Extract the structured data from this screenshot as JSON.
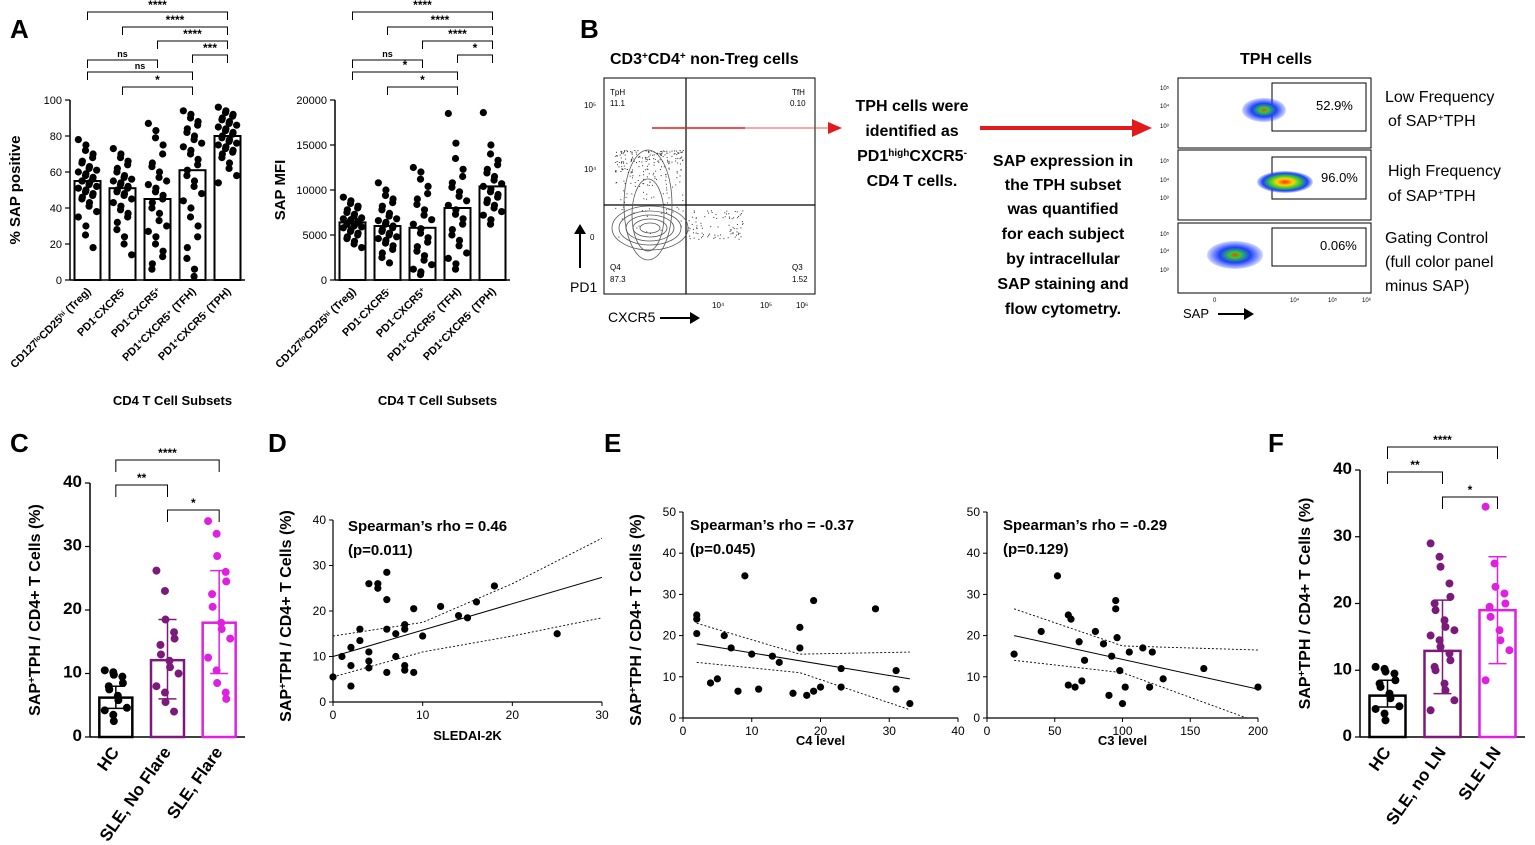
{
  "colors": {
    "black": "#000000",
    "purple": "#7b1a7b",
    "magenta": "#e020e0",
    "red": "#e31a1c"
  },
  "panel_letters": [
    "A",
    "B",
    "C",
    "D",
    "E",
    "F"
  ],
  "panelB": {
    "left_title_main": "CD3",
    "left_title_sup1": "+",
    "left_title_mid": "CD4",
    "left_title_sup2": "+",
    "left_title_tail": " non-Treg cells",
    "right_title": "TPH cells",
    "q_tph_label": "TpH",
    "q_tph_value": "11.1",
    "q_tfh_label": "TfH",
    "q_tfh_value": "0.10",
    "q_q4_label": "Q4",
    "q_q4_value": "87.3",
    "q_q3_label": "Q3",
    "q_q3_value": "1.52",
    "x_axis_label": "CXCR5",
    "y_axis_label": "PD1",
    "sap_axis_label": "SAP",
    "ticks_y_left": [
      "10⁵",
      "10⁴",
      "0"
    ],
    "ticks_x_left": [
      "10⁴",
      "10⁵",
      "10⁶"
    ],
    "ticks_y_small": [
      "10⁵",
      "10⁴",
      "10³"
    ],
    "ticks_x_small": [
      "0",
      "10⁴",
      "10⁵",
      "10⁶"
    ],
    "desc1_l1": "TPH cells were",
    "desc1_l2": "identified as",
    "desc1_l3_a": "PD1",
    "desc1_l3_sup": "high",
    "desc1_l3_b": "CXCR5",
    "desc1_l3_sup2": "-",
    "desc1_l4": "CD4 T cells.",
    "desc2": [
      "SAP expression in",
      "the TPH subset",
      "was quantified",
      "for each subject",
      "by intracellular",
      "SAP staining and",
      "flow cytometry."
    ],
    "gate_pct": [
      "52.9%",
      "96.0%",
      "0.06%"
    ],
    "lbl_low_1": "Low Frequency",
    "lbl_low_2a": "of SAP",
    "lbl_low_sup": "+",
    "lbl_low_2b": "TPH",
    "lbl_high_1": "High Frequency",
    "lbl_high_2a": "of SAP",
    "lbl_high_sup": "+",
    "lbl_high_2b": "TPH",
    "lbl_ctrl": [
      "Gating Control",
      "(full color panel",
      "minus SAP)"
    ]
  },
  "chart_data": [
    {
      "id": "A1",
      "type": "bar",
      "categories": [
        "CD127loCD25hi (Treg)",
        "PD1-CXCR5-",
        "PD1-CXCR5+",
        "PD1+CXCR5+ (TFH)",
        "PD1+CXCR5- (TPH)"
      ],
      "values": [
        55,
        51,
        45,
        61,
        80
      ],
      "ylabel": "% SAP positive",
      "xlabel": "CD4 T Cell Subsets",
      "ylim": [
        0,
        100
      ],
      "yticks": [
        0,
        20,
        40,
        60,
        80,
        100
      ],
      "points": [
        [
          78,
          75,
          72,
          70,
          68,
          66,
          65,
          63,
          62,
          61,
          60,
          59,
          58,
          57,
          56,
          55,
          55,
          54,
          53,
          52,
          51,
          50,
          49,
          48,
          47,
          46,
          45,
          43,
          41,
          38,
          35,
          30,
          25,
          18
        ],
        [
          73,
          70,
          68,
          66,
          64,
          62,
          60,
          58,
          57,
          56,
          55,
          54,
          53,
          52,
          51,
          50,
          49,
          48,
          47,
          45,
          43,
          41,
          39,
          37,
          35,
          32,
          28,
          24,
          20,
          14
        ],
        [
          87,
          83,
          79,
          75,
          70,
          65,
          63,
          60,
          57,
          55,
          53,
          51,
          49,
          47,
          45,
          43,
          40,
          37,
          33,
          30,
          27,
          24,
          20,
          16,
          13,
          9,
          6
        ],
        [
          94,
          92,
          90,
          88,
          86,
          84,
          82,
          80,
          78,
          76,
          74,
          72,
          70,
          67,
          64,
          61,
          58,
          55,
          52,
          48,
          44,
          40,
          35,
          30,
          24,
          18,
          12,
          6,
          2
        ],
        [
          96,
          94,
          93,
          92,
          91,
          90,
          89,
          88,
          87,
          86,
          85,
          84,
          83,
          82,
          81,
          80,
          79,
          78,
          77,
          76,
          75,
          74,
          73,
          72,
          71,
          70,
          68,
          65,
          62,
          58,
          54
        ]
      ],
      "sig": [
        {
          "from": 0,
          "to": 4,
          "label": "****"
        },
        {
          "from": 1,
          "to": 4,
          "label": "****"
        },
        {
          "from": 2,
          "to": 4,
          "label": "****"
        },
        {
          "from": 3,
          "to": 4,
          "label": "***"
        },
        {
          "from": 0,
          "to": 2,
          "label": "ns"
        },
        {
          "from": 0,
          "to": 3,
          "label": "ns"
        },
        {
          "from": 1,
          "to": 3,
          "label": "*"
        }
      ]
    },
    {
      "id": "A2",
      "type": "bar",
      "categories": [
        "CD127loCD25hi (Treg)",
        "PD1-CXCR5-",
        "PD1-CXCR5+",
        "PD1+CXCR5+ (TFH)",
        "PD1+CXCR5- (TPH)"
      ],
      "values": [
        6400,
        6000,
        5800,
        8000,
        10400
      ],
      "ylabel": "SAP MFI",
      "xlabel": "CD4 T Cell Subsets",
      "ylim": [
        0,
        20000
      ],
      "yticks": [
        0,
        5000,
        10000,
        15000,
        20000
      ],
      "points": [
        [
          9200,
          8800,
          8500,
          8200,
          8000,
          7800,
          7500,
          7300,
          7100,
          6900,
          6800,
          6700,
          6600,
          6500,
          6400,
          6300,
          6200,
          6100,
          6000,
          5900,
          5800,
          5600,
          5400,
          5200,
          5000,
          4800,
          4600,
          4300,
          4000,
          3600
        ],
        [
          10800,
          10000,
          9400,
          9000,
          8600,
          8200,
          7800,
          7400,
          7100,
          6800,
          6600,
          6400,
          6200,
          6000,
          5800,
          5600,
          5400,
          5200,
          5000,
          4800,
          4600,
          4400,
          4100,
          3800,
          3400,
          3000,
          2500,
          1900
        ],
        [
          12500,
          12000,
          11200,
          10400,
          9600,
          9000,
          8400,
          7800,
          7200,
          6700,
          6200,
          5700,
          5200,
          4700,
          4200,
          3700,
          3200,
          2700,
          2200,
          1700,
          1200,
          900,
          600
        ],
        [
          18500,
          15200,
          13500,
          12300,
          11500,
          10800,
          10300,
          9800,
          9300,
          8800,
          8300,
          7800,
          7300,
          6800,
          6200,
          5600,
          5000,
          4400,
          3800,
          3000,
          2400,
          1800,
          1200
        ],
        [
          18600,
          15000,
          14000,
          13300,
          12800,
          12300,
          11900,
          11500,
          11100,
          10700,
          10400,
          10100,
          9800,
          9500,
          9200,
          8900,
          8600,
          8300,
          8000,
          7600,
          7200,
          6700,
          6200
        ]
      ],
      "sig": [
        {
          "from": 0,
          "to": 4,
          "label": "****"
        },
        {
          "from": 1,
          "to": 4,
          "label": "****"
        },
        {
          "from": 2,
          "to": 4,
          "label": "****"
        },
        {
          "from": 3,
          "to": 4,
          "label": "*"
        },
        {
          "from": 0,
          "to": 2,
          "label": "ns"
        },
        {
          "from": 0,
          "to": 3,
          "label": "*"
        },
        {
          "from": 1,
          "to": 3,
          "label": "*"
        }
      ]
    },
    {
      "id": "C",
      "type": "bar",
      "categories": [
        "HC",
        "SLE, No Flare",
        "SLE, Flare"
      ],
      "values": [
        6.2,
        12.1,
        18.0
      ],
      "errors": [
        [
          4.5,
          8.0
        ],
        [
          6.0,
          18.5
        ],
        [
          10.0,
          26.2
        ]
      ],
      "colors": [
        "#000000",
        "#7b1a7b",
        "#e020e0"
      ],
      "ylabel": "SAP+TPH / CD4+ T Cells (%)",
      "ylim": [
        0,
        40
      ],
      "yticks": [
        0,
        10,
        20,
        30,
        40
      ],
      "points": [
        [
          10.5,
          10.2,
          9.8,
          9.5,
          8.5,
          8,
          7.5,
          6.5,
          5.8,
          4.6,
          4.2,
          3.5,
          2.5
        ],
        [
          26.2,
          23,
          18.5,
          16.5,
          15.5,
          14.5,
          13,
          12,
          11,
          10,
          8,
          7,
          5.5,
          4
        ],
        [
          34,
          32,
          28.5,
          26,
          24.5,
          22.5,
          20.5,
          18,
          17,
          15.5,
          12.5,
          10.5,
          8.5,
          7,
          6
        ]
      ],
      "sig": [
        {
          "from": 0,
          "to": 2,
          "label": "****"
        },
        {
          "from": 0,
          "to": 1,
          "label": "**"
        },
        {
          "from": 1,
          "to": 2,
          "label": "*"
        }
      ]
    },
    {
      "id": "D",
      "type": "scatter",
      "x": [
        0,
        1,
        2,
        2,
        2,
        3,
        3,
        4,
        4,
        4,
        4,
        5,
        5,
        6,
        6,
        6,
        6,
        7,
        7,
        8,
        8,
        8,
        8,
        9,
        9,
        10,
        12,
        14,
        15,
        16,
        18,
        25
      ],
      "y": [
        5.5,
        10,
        3.5,
        8,
        12,
        13.5,
        16,
        7.5,
        9,
        11,
        26,
        26,
        25,
        28.5,
        22.5,
        16,
        6.5,
        10,
        15,
        17,
        16,
        8,
        7,
        20.5,
        6.5,
        14.5,
        21,
        19,
        18.5,
        22,
        25.5,
        15
      ],
      "xlabel": "SLEDAI-2K",
      "ylabel": "SAP+TPH / CD4+ T Cells (%)",
      "xlim": [
        0,
        30
      ],
      "ylim": [
        0,
        40
      ],
      "xticks": [
        0,
        10,
        20,
        30
      ],
      "yticks": [
        0,
        10,
        20,
        30,
        40
      ],
      "fit": [
        [
          0,
          10
        ],
        [
          30,
          27.4
        ]
      ],
      "ci_upper": [
        [
          0,
          14.5
        ],
        [
          10,
          17.5
        ],
        [
          20,
          26
        ],
        [
          30,
          36
        ]
      ],
      "ci_lower": [
        [
          0,
          5.5
        ],
        [
          10,
          11
        ],
        [
          20,
          14.5
        ],
        [
          30,
          18.5
        ]
      ],
      "annotation_line1": "Spearman’s rho = 0.46",
      "annotation_line2": "(p=0.011)"
    },
    {
      "id": "E1",
      "type": "scatter",
      "x": [
        2,
        2,
        2,
        4,
        5,
        6,
        7,
        8,
        9,
        10,
        11,
        13,
        14,
        16,
        17,
        17,
        18,
        19,
        19,
        20,
        23,
        23,
        28,
        31,
        31,
        33
      ],
      "y": [
        25,
        24,
        20.5,
        8.5,
        9.5,
        20,
        17,
        6.5,
        34.5,
        15.5,
        7,
        15,
        13.5,
        6,
        17,
        22,
        5.5,
        28.5,
        6.5,
        7.5,
        12,
        7.5,
        26.5,
        11.5,
        7,
        3.5
      ],
      "xlabel": "C4 level",
      "ylabel": "SAP+TPH / CD4+ T Cells (%)",
      "xlim": [
        0,
        40
      ],
      "ylim": [
        0,
        50
      ],
      "xticks": [
        0,
        10,
        20,
        30,
        40
      ],
      "yticks": [
        0,
        10,
        20,
        30,
        40,
        50
      ],
      "fit": [
        [
          2,
          18
        ],
        [
          33,
          9.5
        ]
      ],
      "ci_upper": [
        [
          2,
          23
        ],
        [
          17,
          15.5
        ],
        [
          33,
          16
        ]
      ],
      "ci_lower": [
        [
          2,
          13.5
        ],
        [
          17,
          11
        ],
        [
          33,
          2
        ]
      ],
      "annotation_line1": "Spearman’s rho = -0.37",
      "annotation_line2": "(p=0.045)"
    },
    {
      "id": "E2",
      "type": "scatter",
      "x": [
        20,
        40,
        52,
        60,
        60,
        62,
        65,
        68,
        70,
        72,
        80,
        86,
        90,
        92,
        95,
        95,
        96,
        98,
        100,
        102,
        105,
        115,
        120,
        122,
        130,
        160,
        200
      ],
      "y": [
        15.5,
        21,
        34.5,
        25,
        8,
        24,
        7.5,
        18.5,
        9,
        14,
        21,
        18,
        5.5,
        15,
        26.5,
        28.5,
        19.5,
        11.5,
        3.5,
        7.5,
        16,
        17,
        7.5,
        16,
        9.5,
        12,
        7.5
      ],
      "xlabel": "C3 level",
      "ylabel": "SAP+TPH / CD4+ T Cells (%)",
      "xlim": [
        0,
        200
      ],
      "ylim": [
        0,
        50
      ],
      "xticks": [
        0,
        50,
        100,
        150,
        200
      ],
      "yticks": [
        0,
        10,
        20,
        30,
        40,
        50
      ],
      "fit": [
        [
          20,
          20
        ],
        [
          200,
          7
        ]
      ],
      "ci_upper": [
        [
          20,
          26.5
        ],
        [
          100,
          17.5
        ],
        [
          200,
          16.5
        ]
      ],
      "ci_lower": [
        [
          20,
          14
        ],
        [
          100,
          11
        ],
        [
          200,
          -1
        ]
      ],
      "annotation_line1": "Spearman’s rho = -0.29",
      "annotation_line2": "(p=0.129)"
    },
    {
      "id": "F",
      "type": "bar",
      "categories": [
        "HC",
        "SLE, no LN",
        "SLE LN"
      ],
      "values": [
        6.2,
        12.9,
        19.0
      ],
      "errors": [
        [
          4.5,
          8.5
        ],
        [
          6.5,
          20.5
        ],
        [
          11,
          27
        ]
      ],
      "colors": [
        "#000000",
        "#7b1a7b",
        "#e020e0"
      ],
      "ylabel": "SAP+TPH / CD4+ T Cells (%)",
      "ylim": [
        0,
        40
      ],
      "yticks": [
        0,
        10,
        20,
        30,
        40
      ],
      "points": [
        [
          10.5,
          10.2,
          9.8,
          9.5,
          8.5,
          8,
          7.5,
          6.5,
          5.8,
          4.6,
          4.2,
          3.5,
          2.5
        ],
        [
          29,
          27,
          25.5,
          23,
          21,
          20,
          19,
          17.5,
          16.5,
          16,
          15.2,
          14.5,
          13.5,
          12.5,
          11.5,
          10.5,
          10,
          8,
          7,
          5.5,
          4
        ],
        [
          34.5,
          26,
          22.5,
          21.5,
          20,
          19.5,
          18,
          16,
          14.5,
          13,
          8.5
        ]
      ],
      "sig": [
        {
          "from": 0,
          "to": 2,
          "label": "****"
        },
        {
          "from": 0,
          "to": 1,
          "label": "**"
        },
        {
          "from": 1,
          "to": 2,
          "label": "*"
        }
      ]
    }
  ]
}
